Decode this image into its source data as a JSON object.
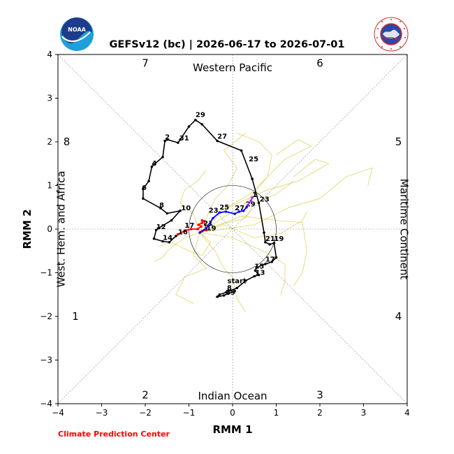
{
  "title": "GEFSv12 (bc) | 2026-06-17 to 2026-07-01",
  "credit": "Climate Prediction Center",
  "logos": {
    "left": "NOAA",
    "right_ring": "NATIONAL WEATHER SERVICE"
  },
  "colors": {
    "observed": "#000000",
    "forecast_mean": "#ff0000",
    "forecast_week2": "#0000ff",
    "forecast_week3": "#a020f0",
    "ensemble": "#d4c832"
  },
  "chart_data": {
    "type": "line",
    "xlabel": "RMM 1",
    "ylabel": "RMM 2",
    "xlim": [
      -4,
      4
    ],
    "ylim": [
      -4,
      4
    ],
    "xticks": [
      -4,
      -3,
      -2,
      -1,
      0,
      1,
      2,
      3,
      4
    ],
    "yticks": [
      -4,
      -3,
      -2,
      -1,
      0,
      1,
      2,
      3,
      4
    ],
    "unit_circle_radius": 1,
    "grid": false,
    "regions": [
      {
        "text": "Western Pacific",
        "side": "top"
      },
      {
        "text": "Indian Ocean",
        "side": "bottom"
      },
      {
        "text": "West. Hem. and Africa",
        "side": "left"
      },
      {
        "text": "Maritime Continent",
        "side": "right"
      }
    ],
    "phase_labels": [
      {
        "text": "1",
        "x": -3.6,
        "y": -2.0
      },
      {
        "text": "2",
        "x": -2.0,
        "y": -3.8
      },
      {
        "text": "3",
        "x": 2.0,
        "y": -3.8
      },
      {
        "text": "4",
        "x": 3.8,
        "y": -2.0
      },
      {
        "text": "5",
        "x": 3.8,
        "y": 2.0
      },
      {
        "text": "6",
        "x": 2.0,
        "y": 3.8
      },
      {
        "text": "7",
        "x": -2.0,
        "y": 3.8
      },
      {
        "text": "8",
        "x": -3.8,
        "y": 2.0
      }
    ],
    "observed": {
      "points": [
        [
          0.05,
          -1.42
        ],
        [
          -0.1,
          -1.48
        ],
        [
          -0.2,
          -1.52
        ],
        [
          -0.35,
          -1.55
        ],
        [
          -0.3,
          -1.5
        ],
        [
          -0.15,
          -1.45
        ],
        [
          0.1,
          -1.35
        ],
        [
          0.3,
          -1.18
        ],
        [
          0.5,
          -1.08
        ],
        [
          0.6,
          -1.05
        ],
        [
          0.52,
          -0.95
        ],
        [
          0.55,
          -0.88
        ],
        [
          0.75,
          -0.8
        ],
        [
          0.9,
          -0.75
        ],
        [
          1.0,
          -0.65
        ],
        [
          0.95,
          -0.32
        ],
        [
          0.85,
          -0.35
        ],
        [
          0.75,
          -0.3
        ],
        [
          0.72,
          -0.08
        ],
        [
          0.6,
          0.6
        ],
        [
          0.45,
          1.15
        ],
        [
          0.2,
          1.8
        ],
        [
          -0.35,
          2.02
        ],
        [
          -0.7,
          2.4
        ],
        [
          -0.85,
          2.5
        ],
        [
          -1.0,
          2.35
        ],
        [
          -1.2,
          2.05
        ],
        [
          -1.25,
          1.98
        ],
        [
          -1.5,
          2.05
        ],
        [
          -1.55,
          2.02
        ],
        [
          -1.6,
          1.65
        ],
        [
          -1.8,
          1.48
        ],
        [
          -1.85,
          1.43
        ],
        [
          -1.92,
          1.1
        ],
        [
          -2.05,
          0.92
        ],
        [
          -2.05,
          0.7
        ],
        [
          -1.65,
          0.48
        ],
        [
          -1.5,
          0.36
        ],
        [
          -1.2,
          0.42
        ],
        [
          -1.4,
          0.2
        ],
        [
          -1.7,
          0.02
        ],
        [
          -1.75,
          -0.02
        ],
        [
          -1.8,
          -0.22
        ],
        [
          -1.6,
          -0.28
        ],
        [
          -1.45,
          -0.3
        ],
        [
          -1.3,
          -0.16
        ],
        [
          -1.25,
          -0.12
        ]
      ],
      "labels": [
        {
          "text": "start",
          "x": -0.12,
          "y": -1.24
        },
        {
          "text": "8",
          "x": -0.13,
          "y": -1.4
        },
        {
          "text": "59",
          "x": -0.16,
          "y": -1.5
        },
        {
          "text": "13",
          "x": 0.52,
          "y": -1.05
        },
        {
          "text": "15",
          "x": 0.5,
          "y": -0.9
        },
        {
          "text": "17",
          "x": 0.75,
          "y": -0.74
        },
        {
          "text": "19",
          "x": 0.95,
          "y": -0.27
        },
        {
          "text": "21",
          "x": 0.75,
          "y": -0.27
        },
        {
          "text": "23",
          "x": 0.62,
          "y": 0.63
        },
        {
          "text": "25",
          "x": 0.37,
          "y": 1.55
        },
        {
          "text": "27",
          "x": -0.35,
          "y": 2.07
        },
        {
          "text": "29",
          "x": -0.85,
          "y": 2.57
        },
        {
          "text": "31",
          "x": -1.22,
          "y": 2.03
        },
        {
          "text": "2",
          "x": -1.55,
          "y": 2.06
        },
        {
          "text": "4",
          "x": -1.85,
          "y": 1.46
        },
        {
          "text": "6",
          "x": -2.08,
          "y": 0.9
        },
        {
          "text": "8",
          "x": -1.68,
          "y": 0.5
        },
        {
          "text": "10",
          "x": -1.18,
          "y": 0.43
        },
        {
          "text": "12",
          "x": -1.75,
          "y": 0.0
        },
        {
          "text": "14",
          "x": -1.6,
          "y": -0.25
        }
      ]
    },
    "forecast_week1": {
      "points": [
        [
          -1.25,
          -0.12
        ],
        [
          -1.1,
          -0.04
        ],
        [
          -0.95,
          0.0
        ],
        [
          -0.8,
          0.0
        ],
        [
          -0.72,
          0.06
        ],
        [
          -0.78,
          0.1
        ],
        [
          -0.7,
          0.14
        ],
        [
          -0.7,
          0.2
        ],
        [
          -0.65,
          0.18
        ],
        [
          -0.6,
          -0.02
        ],
        [
          -0.7,
          -0.05
        ],
        [
          -0.75,
          -0.08
        ]
      ],
      "labels": [
        {
          "text": "16",
          "x": -1.25,
          "y": -0.12
        },
        {
          "text": "17",
          "x": -1.1,
          "y": 0.03
        },
        {
          "text": "21",
          "x": -0.67,
          "y": 0.08
        },
        {
          "text": "19",
          "x": -0.6,
          "y": -0.03
        }
      ]
    },
    "forecast_week2": {
      "points": [
        [
          -0.75,
          -0.08
        ],
        [
          -0.6,
          0.02
        ],
        [
          -0.45,
          0.25
        ],
        [
          -0.3,
          0.38
        ],
        [
          -0.15,
          0.4
        ],
        [
          0.05,
          0.35
        ],
        [
          0.15,
          0.4
        ],
        [
          0.25,
          0.42
        ],
        [
          0.32,
          0.5
        ],
        [
          0.35,
          0.55
        ]
      ],
      "labels": [
        {
          "text": "23",
          "x": -0.55,
          "y": 0.38
        },
        {
          "text": "25",
          "x": -0.3,
          "y": 0.45
        },
        {
          "text": "27",
          "x": 0.05,
          "y": 0.43
        },
        {
          "text": "29",
          "x": 0.3,
          "y": 0.52
        }
      ]
    },
    "forecast_week3": {
      "points": [
        [
          0.35,
          0.55
        ],
        [
          0.42,
          0.65
        ],
        [
          0.45,
          0.72
        ]
      ],
      "labels": [
        {
          "text": "1",
          "x": 0.45,
          "y": 0.74
        }
      ]
    },
    "ensemble_members": [
      [
        [
          -0.75,
          -0.08
        ],
        [
          -0.3,
          0.4
        ],
        [
          0.4,
          0.8
        ],
        [
          1.2,
          1.6
        ],
        [
          1.8,
          1.9
        ],
        [
          1.5,
          2.05
        ],
        [
          1.0,
          1.7
        ]
      ],
      [
        [
          -0.75,
          -0.08
        ],
        [
          -0.1,
          0.5
        ],
        [
          0.8,
          0.9
        ],
        [
          1.5,
          1.1
        ],
        [
          2.2,
          1.5
        ],
        [
          1.9,
          1.6
        ],
        [
          1.4,
          1.2
        ]
      ],
      [
        [
          -0.75,
          -0.08
        ],
        [
          0.2,
          0.3
        ],
        [
          1.0,
          0.2
        ],
        [
          1.6,
          0.15
        ],
        [
          1.7,
          -0.5
        ],
        [
          1.6,
          -1.0
        ],
        [
          1.4,
          -1.3
        ]
      ],
      [
        [
          -0.75,
          -0.08
        ],
        [
          0.0,
          -0.2
        ],
        [
          0.7,
          -0.5
        ],
        [
          1.2,
          -0.8
        ],
        [
          1.2,
          -1.2
        ],
        [
          1.1,
          -1.5
        ]
      ],
      [
        [
          -0.75,
          -0.08
        ],
        [
          -0.4,
          -0.5
        ],
        [
          -0.2,
          -0.9
        ],
        [
          0.0,
          -1.1
        ],
        [
          0.1,
          -1.6
        ],
        [
          0.3,
          -1.9
        ]
      ],
      [
        [
          -0.75,
          -0.08
        ],
        [
          -0.9,
          -0.6
        ],
        [
          -0.6,
          -0.9
        ],
        [
          -1.1,
          -1.1
        ],
        [
          -1.3,
          -1.5
        ],
        [
          -0.9,
          -1.7
        ]
      ],
      [
        [
          -0.75,
          -0.08
        ],
        [
          -1.1,
          -0.2
        ],
        [
          -1.5,
          -0.5
        ],
        [
          -1.6,
          -0.65
        ],
        [
          -1.8,
          -0.75
        ]
      ],
      [
        [
          -0.75,
          -0.08
        ],
        [
          -0.9,
          0.35
        ],
        [
          -1.2,
          0.6
        ],
        [
          -1.1,
          0.9
        ],
        [
          -0.8,
          1.1
        ],
        [
          -0.6,
          1.35
        ]
      ],
      [
        [
          -0.75,
          -0.08
        ],
        [
          -0.4,
          0.7
        ],
        [
          -0.1,
          1.0
        ],
        [
          0.1,
          1.4
        ],
        [
          -0.2,
          1.8
        ],
        [
          0.3,
          2.2
        ]
      ],
      [
        [
          -0.75,
          -0.08
        ],
        [
          0.3,
          0.6
        ],
        [
          0.8,
          1.2
        ],
        [
          0.9,
          1.7
        ],
        [
          0.6,
          2.0
        ],
        [
          0.1,
          2.2
        ]
      ],
      [
        [
          -0.75,
          -0.08
        ],
        [
          0.5,
          0.1
        ],
        [
          1.3,
          0.5
        ],
        [
          2.0,
          0.7
        ],
        [
          2.6,
          1.2
        ],
        [
          3.2,
          1.4
        ],
        [
          3.1,
          1.0
        ]
      ],
      [
        [
          -0.75,
          -0.08
        ],
        [
          -0.2,
          0.1
        ],
        [
          0.5,
          -0.2
        ],
        [
          1.1,
          -0.1
        ],
        [
          1.6,
          0.2
        ],
        [
          1.7,
          0.4
        ]
      ],
      [
        [
          -0.75,
          -0.08
        ],
        [
          -0.5,
          -0.3
        ],
        [
          -0.7,
          -0.6
        ],
        [
          -1.0,
          -0.5
        ],
        [
          -1.4,
          -0.3
        ],
        [
          -1.7,
          -0.4
        ]
      ],
      [
        [
          -0.75,
          -0.08
        ],
        [
          -0.3,
          0.1
        ],
        [
          0.3,
          0.25
        ],
        [
          0.5,
          0.6
        ],
        [
          1.0,
          0.8
        ],
        [
          1.4,
          1.1
        ]
      ]
    ]
  }
}
